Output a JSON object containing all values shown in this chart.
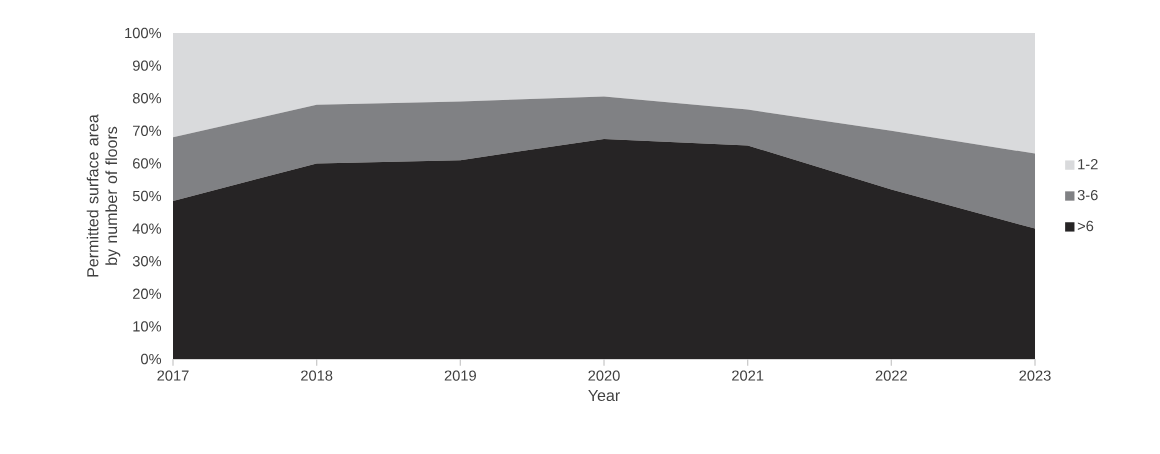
{
  "chart_data": {
    "type": "area",
    "stacked": true,
    "xlabel": "Year",
    "ylabel": "Permitted surface area by number of floors",
    "x": [
      2017,
      2018,
      2019,
      2020,
      2021,
      2022,
      2023
    ],
    "xlim": [
      2017,
      2023
    ],
    "xticks": [
      2017,
      2018,
      2019,
      2020,
      2021,
      2022,
      2023
    ],
    "ylim": [
      0,
      100
    ],
    "yticks": [
      {
        "value": 0,
        "label": "0%"
      },
      {
        "value": 10,
        "label": "10%"
      },
      {
        "value": 20,
        "label": "20%"
      },
      {
        "value": 30,
        "label": "30%"
      },
      {
        "value": 40,
        "label": "40%"
      },
      {
        "value": 50,
        "label": "50%"
      },
      {
        "value": 60,
        "label": "60%"
      },
      {
        "value": 70,
        "label": "70%"
      },
      {
        "value": 80,
        "label": "80%"
      },
      {
        "value": 90,
        "label": "90%"
      },
      {
        "value": 100,
        "label": "100%"
      }
    ],
    "legend": "right",
    "series": [
      {
        "name": ">6",
        "color": "#262425",
        "values": [
          48.5,
          60,
          61,
          67.5,
          65.5,
          52,
          40
        ]
      },
      {
        "name": "3-6",
        "color": "#808184",
        "values": [
          19.5,
          18,
          18,
          13,
          11,
          18,
          23
        ]
      },
      {
        "name": "1-2",
        "color": "#d9dadc",
        "values": [
          32,
          22,
          21,
          19.5,
          23.5,
          30,
          37
        ]
      }
    ]
  }
}
